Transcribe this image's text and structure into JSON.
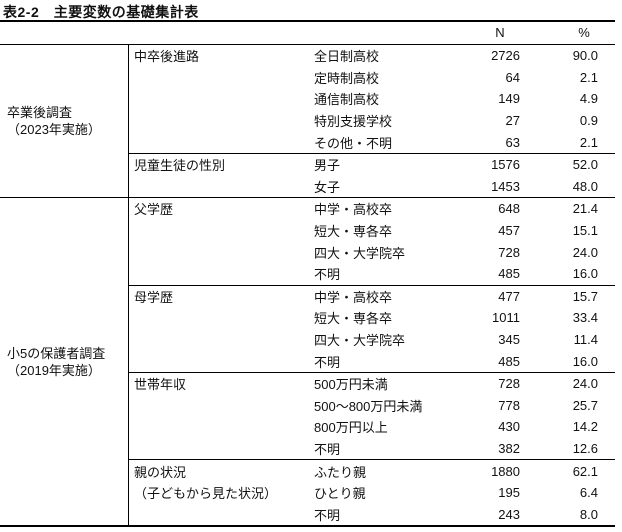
{
  "title": "表2-2　主要変数の基礎集計表",
  "table": {
    "col_headers": {
      "n": "N",
      "pct": "%"
    },
    "surveys": [
      {
        "label_line1": "卒業後調査",
        "label_line2": "（2023年実施）",
        "groups": [
          {
            "variable": "中卒後進路",
            "rows": [
              {
                "category": "全日制高校",
                "n": "2726",
                "pct": "90.0"
              },
              {
                "category": "定時制高校",
                "n": "64",
                "pct": "2.1"
              },
              {
                "category": "通信制高校",
                "n": "149",
                "pct": "4.9"
              },
              {
                "category": "特別支援学校",
                "n": "27",
                "pct": "0.9"
              },
              {
                "category": "その他・不明",
                "n": "63",
                "pct": "2.1"
              }
            ]
          },
          {
            "variable": "児童生徒の性別",
            "rows": [
              {
                "category": "男子",
                "n": "1576",
                "pct": "52.0"
              },
              {
                "category": "女子",
                "n": "1453",
                "pct": "48.0"
              }
            ]
          }
        ]
      },
      {
        "label_line1": "小5の保護者調査",
        "label_line2": "（2019年実施）",
        "groups": [
          {
            "variable": "父学歴",
            "rows": [
              {
                "category": "中学・高校卒",
                "n": "648",
                "pct": "21.4"
              },
              {
                "category": "短大・専各卒",
                "n": "457",
                "pct": "15.1"
              },
              {
                "category": "四大・大学院卒",
                "n": "728",
                "pct": "24.0"
              },
              {
                "category": "不明",
                "n": "485",
                "pct": "16.0"
              }
            ]
          },
          {
            "variable": "母学歴",
            "rows": [
              {
                "category": "中学・高校卒",
                "n": "477",
                "pct": "15.7"
              },
              {
                "category": "短大・専各卒",
                "n": "1011",
                "pct": "33.4"
              },
              {
                "category": "四大・大学院卒",
                "n": "345",
                "pct": "11.4"
              },
              {
                "category": "不明",
                "n": "485",
                "pct": "16.0"
              }
            ]
          },
          {
            "variable": "世帯年収",
            "rows": [
              {
                "category": "500万円未満",
                "n": "728",
                "pct": "24.0"
              },
              {
                "category": "500〜800万円未満",
                "n": "778",
                "pct": "25.7"
              },
              {
                "category": "800万円以上",
                "n": "430",
                "pct": "14.2"
              },
              {
                "category": "不明",
                "n": "382",
                "pct": "12.6"
              }
            ]
          },
          {
            "variable": "親の状況",
            "variable_line2": "（子どもから見た状況）",
            "rows": [
              {
                "category": "ふたり親",
                "n": "1880",
                "pct": "62.1"
              },
              {
                "category": "ひとり親",
                "n": "195",
                "pct": "6.4"
              },
              {
                "category": "不明",
                "n": "243",
                "pct": "8.0"
              }
            ]
          }
        ]
      }
    ]
  }
}
